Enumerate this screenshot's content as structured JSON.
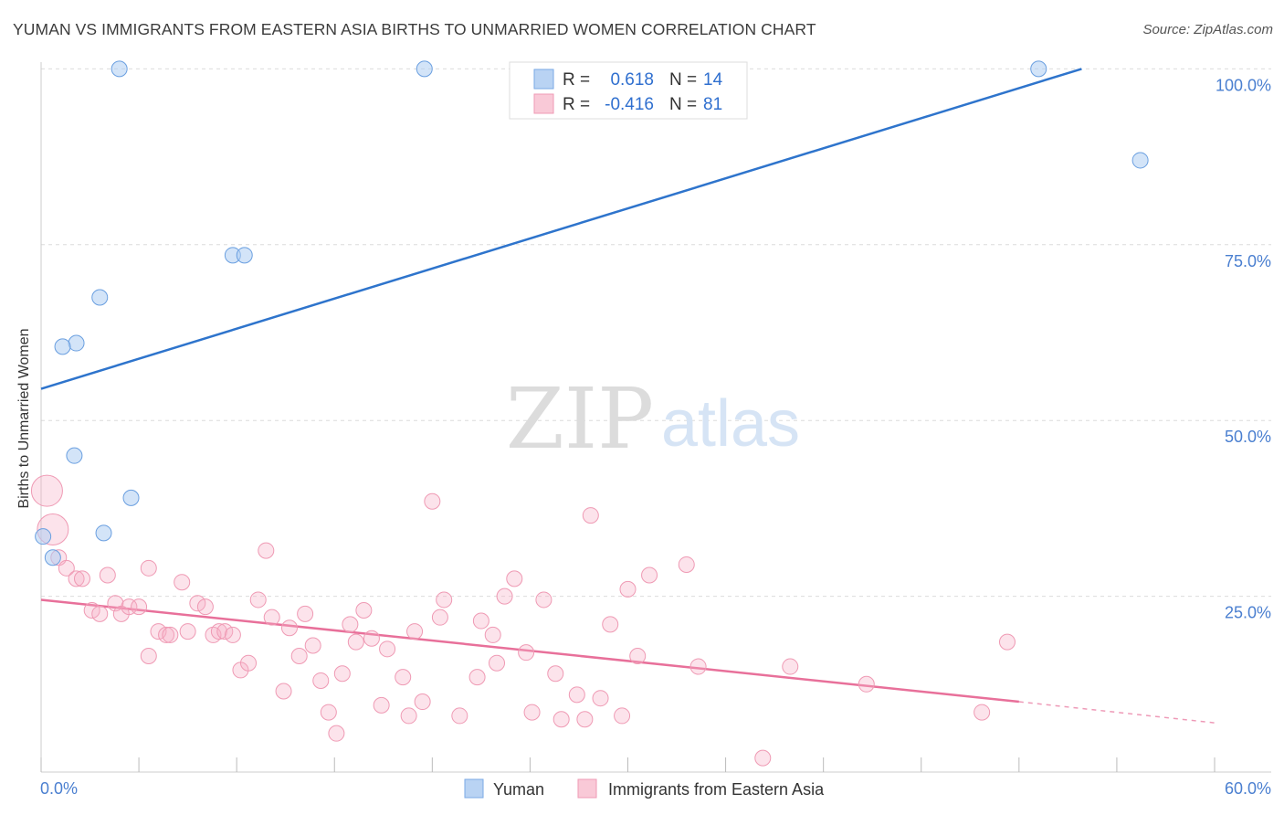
{
  "title": "YUMAN VS IMMIGRANTS FROM EASTERN ASIA BIRTHS TO UNMARRIED WOMEN CORRELATION CHART",
  "source": "Source: ZipAtlas.com",
  "watermark": {
    "zip": "ZIP",
    "atlas": "atlas"
  },
  "legend_top": [
    {
      "r_label": "R =",
      "r_value": "0.618",
      "n_label": "N =",
      "n_value": "14"
    },
    {
      "r_label": "R =",
      "r_value": "-0.416",
      "n_label": "N =",
      "n_value": "81"
    }
  ],
  "chart_data": {
    "type": "scatter",
    "title": "YUMAN VS IMMIGRANTS FROM EASTERN ASIA BIRTHS TO UNMARRIED WOMEN CORRELATION CHART",
    "xlabel": "",
    "ylabel": "Births to Unmarried Women",
    "xlim": [
      0,
      60
    ],
    "ylim": [
      0,
      102
    ],
    "x_tick_labels": [
      "0.0%",
      "60.0%"
    ],
    "y_tick_labels": [
      "25.0%",
      "50.0%",
      "75.0%",
      "100.0%"
    ],
    "y_ticks": [
      25,
      50,
      75,
      100
    ],
    "grid": true,
    "legend_position": "bottom-center",
    "colors": {
      "Yuman": "#6a9fe0",
      "Immigrants from Eastern Asia": "#f08aaa",
      "yuman_line": "#2e74cc",
      "asia_line": "#e8709a",
      "tick_text": "#4a7fd0"
    },
    "series": [
      {
        "name": "Yuman",
        "trend": {
          "x0": 0,
          "y0": 54.5,
          "x1": 53.2,
          "y1": 100,
          "dashed_to": null
        },
        "points": [
          {
            "x": 4.0,
            "y": 100
          },
          {
            "x": 19.6,
            "y": 100
          },
          {
            "x": 51.0,
            "y": 100
          },
          {
            "x": 56.2,
            "y": 87
          },
          {
            "x": 9.8,
            "y": 73.5
          },
          {
            "x": 10.4,
            "y": 73.5
          },
          {
            "x": 3.0,
            "y": 67.5
          },
          {
            "x": 1.8,
            "y": 61
          },
          {
            "x": 1.1,
            "y": 60.5
          },
          {
            "x": 1.7,
            "y": 45
          },
          {
            "x": 4.6,
            "y": 39
          },
          {
            "x": 3.2,
            "y": 34
          },
          {
            "x": 0.1,
            "y": 33.5
          },
          {
            "x": 0.6,
            "y": 30.5
          }
        ]
      },
      {
        "name": "Immigrants from Eastern Asia",
        "trend": {
          "x0": 0,
          "y0": 24.5,
          "x1": 50,
          "y1": 10,
          "dashed_to": {
            "x": 60,
            "y": 7
          }
        },
        "points": [
          {
            "x": 0.3,
            "y": 40,
            "big": true
          },
          {
            "x": 0.6,
            "y": 34.5,
            "big": true
          },
          {
            "x": 0.9,
            "y": 30.5
          },
          {
            "x": 1.3,
            "y": 29
          },
          {
            "x": 1.8,
            "y": 27.5
          },
          {
            "x": 2.1,
            "y": 27.5
          },
          {
            "x": 3.4,
            "y": 28
          },
          {
            "x": 2.6,
            "y": 23
          },
          {
            "x": 3.0,
            "y": 22.5
          },
          {
            "x": 3.8,
            "y": 24
          },
          {
            "x": 4.1,
            "y": 22.5
          },
          {
            "x": 4.5,
            "y": 23.5
          },
          {
            "x": 5.0,
            "y": 23.5
          },
          {
            "x": 5.5,
            "y": 16.5
          },
          {
            "x": 5.5,
            "y": 29
          },
          {
            "x": 6.0,
            "y": 20
          },
          {
            "x": 6.4,
            "y": 19.5
          },
          {
            "x": 6.6,
            "y": 19.5
          },
          {
            "x": 7.2,
            "y": 27
          },
          {
            "x": 7.5,
            "y": 20
          },
          {
            "x": 8.0,
            "y": 24
          },
          {
            "x": 8.4,
            "y": 23.5
          },
          {
            "x": 8.8,
            "y": 19.5
          },
          {
            "x": 9.1,
            "y": 20
          },
          {
            "x": 9.4,
            "y": 20
          },
          {
            "x": 9.8,
            "y": 19.5
          },
          {
            "x": 10.2,
            "y": 14.5
          },
          {
            "x": 10.6,
            "y": 15.5
          },
          {
            "x": 11.1,
            "y": 24.5
          },
          {
            "x": 11.5,
            "y": 31.5
          },
          {
            "x": 11.8,
            "y": 22
          },
          {
            "x": 12.4,
            "y": 11.5
          },
          {
            "x": 12.7,
            "y": 20.5
          },
          {
            "x": 13.2,
            "y": 16.5
          },
          {
            "x": 13.5,
            "y": 22.5
          },
          {
            "x": 13.9,
            "y": 18
          },
          {
            "x": 14.3,
            "y": 13
          },
          {
            "x": 14.7,
            "y": 8.5
          },
          {
            "x": 15.1,
            "y": 5.5
          },
          {
            "x": 15.4,
            "y": 14
          },
          {
            "x": 15.8,
            "y": 21
          },
          {
            "x": 16.1,
            "y": 18.5
          },
          {
            "x": 16.5,
            "y": 23
          },
          {
            "x": 16.9,
            "y": 19
          },
          {
            "x": 17.4,
            "y": 9.5
          },
          {
            "x": 17.7,
            "y": 17.5
          },
          {
            "x": 18.5,
            "y": 13.5
          },
          {
            "x": 18.8,
            "y": 8
          },
          {
            "x": 19.1,
            "y": 20
          },
          {
            "x": 19.5,
            "y": 10
          },
          {
            "x": 20.0,
            "y": 38.5
          },
          {
            "x": 20.4,
            "y": 22
          },
          {
            "x": 20.6,
            "y": 24.5
          },
          {
            "x": 21.4,
            "y": 8
          },
          {
            "x": 22.3,
            "y": 13.5
          },
          {
            "x": 22.5,
            "y": 21.5
          },
          {
            "x": 23.1,
            "y": 19.5
          },
          {
            "x": 23.3,
            "y": 15.5
          },
          {
            "x": 23.7,
            "y": 25
          },
          {
            "x": 24.2,
            "y": 27.5
          },
          {
            "x": 24.8,
            "y": 17
          },
          {
            "x": 25.1,
            "y": 8.5
          },
          {
            "x": 25.7,
            "y": 24.5
          },
          {
            "x": 26.3,
            "y": 14
          },
          {
            "x": 26.6,
            "y": 7.5
          },
          {
            "x": 27.4,
            "y": 11
          },
          {
            "x": 27.8,
            "y": 7.5
          },
          {
            "x": 28.1,
            "y": 36.5
          },
          {
            "x": 28.6,
            "y": 10.5
          },
          {
            "x": 29.1,
            "y": 21
          },
          {
            "x": 29.7,
            "y": 8
          },
          {
            "x": 30.0,
            "y": 26
          },
          {
            "x": 30.5,
            "y": 16.5
          },
          {
            "x": 31.1,
            "y": 28
          },
          {
            "x": 33.0,
            "y": 29.5
          },
          {
            "x": 33.6,
            "y": 15
          },
          {
            "x": 36.9,
            "y": 2
          },
          {
            "x": 38.3,
            "y": 15
          },
          {
            "x": 42.2,
            "y": 12.5
          },
          {
            "x": 48.1,
            "y": 8.5
          },
          {
            "x": 49.4,
            "y": 18.5
          }
        ]
      }
    ]
  },
  "legend_bottom": [
    {
      "label": "Yuman"
    },
    {
      "label": "Immigrants from Eastern Asia"
    }
  ]
}
